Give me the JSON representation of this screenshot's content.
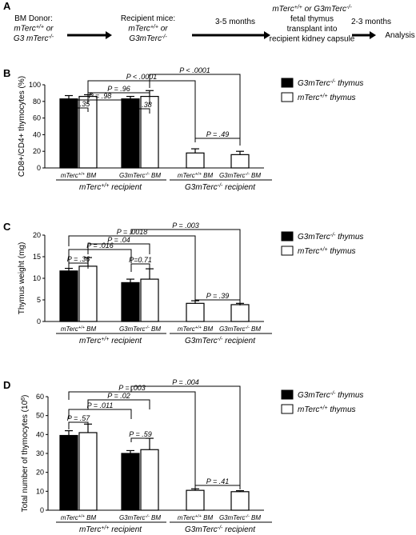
{
  "panel_a": {
    "letter": "A",
    "steps": [
      [
        "BM Donor:",
        "mTerc+/+ or",
        "G3 mTerc-/-"
      ],
      [
        "Recipient mice:",
        "mTerc+/+ or",
        "G3mTerc-/-"
      ],
      [
        "3-5 months"
      ],
      [
        "mTerc+/+ or G3mTerc-/-",
        "fetal thymus",
        "transplant into",
        "recipient kidney capsule"
      ],
      [
        "2-3 months"
      ],
      [
        "Analysis"
      ]
    ]
  },
  "legend": {
    "g3_label": "G3mTerc-/- thymus",
    "wt_label": "mTerc+/+ thymus",
    "g3_color": "#000000",
    "wt_color": "#ffffff"
  },
  "group_labels": {
    "wt_bm": "mTerc+/+ BM",
    "g3_bm": "G3mTerc-/- BM",
    "wt_recipient": "mTerc+/+ recipient",
    "g3_recipient": "G3mTerc-/- recipient"
  },
  "chart_data": [
    {
      "panel": "B",
      "type": "bar",
      "ylabel": "CD8+/CD4+ thymocytes (%)",
      "ylim": [
        0,
        100
      ],
      "yticks": [
        0,
        20,
        40,
        60,
        80,
        100
      ],
      "categories": [
        "mTerc+/+ BM",
        "G3mTerc-/- BM",
        "mTerc+/+ BM",
        "G3mTerc-/- BM"
      ],
      "recipients": [
        "mTerc+/+ recipient",
        "mTerc+/+ recipient",
        "G3mTerc-/- recipient",
        "G3mTerc-/- recipient"
      ],
      "series": [
        {
          "name": "G3mTerc-/- thymus",
          "values": [
            83,
            83,
            null,
            null
          ],
          "errors": [
            4,
            3,
            null,
            null
          ]
        },
        {
          "name": "mTerc+/+ thymus",
          "values": [
            86,
            86,
            18,
            16
          ],
          "errors": [
            2,
            7,
            5,
            4
          ]
        }
      ],
      "comparisons": [
        "P = .35",
        "P = .98",
        "P = .96",
        "P = .38",
        "P < .0001",
        "P < .0001",
        "P = .49"
      ]
    },
    {
      "panel": "C",
      "type": "bar",
      "ylabel": "Thymus weight (mg)",
      "ylim": [
        0,
        20
      ],
      "yticks": [
        0,
        5,
        10,
        15,
        20
      ],
      "categories": [
        "mTerc+/+ BM",
        "G3mTerc-/- BM",
        "mTerc+/+ BM",
        "G3mTerc-/- BM"
      ],
      "recipients": [
        "mTerc+/+ recipient",
        "mTerc+/+ recipient",
        "G3mTerc-/- recipient",
        "G3mTerc-/- recipient"
      ],
      "series": [
        {
          "name": "G3mTerc-/- thymus",
          "values": [
            11.7,
            9.0,
            null,
            null
          ],
          "errors": [
            0.6,
            0.8,
            null,
            null
          ]
        },
        {
          "name": "mTerc+/+ thymus",
          "values": [
            12.8,
            9.8,
            4.2,
            3.9
          ],
          "errors": [
            2.0,
            2.4,
            0.6,
            0.3
          ]
        }
      ],
      "comparisons": [
        "P = .36",
        "P = .016",
        "P=0.71",
        "P = .04",
        "P = .0018",
        "P = .003",
        "P = .39"
      ]
    },
    {
      "panel": "D",
      "type": "bar",
      "ylabel": "Total number of thymocytes (10^6)",
      "ylim": [
        0,
        60
      ],
      "yticks": [
        0,
        10,
        20,
        30,
        40,
        50,
        60
      ],
      "categories": [
        "mTerc+/+ BM",
        "G3mTerc-/- BM",
        "mTerc+/+ BM",
        "G3mTerc-/- BM"
      ],
      "recipients": [
        "mTerc+/+ recipient",
        "mTerc+/+ recipient",
        "G3mTerc-/- recipient",
        "G3mTerc-/- recipient"
      ],
      "series": [
        {
          "name": "G3mTerc-/- thymus",
          "values": [
            39.5,
            30,
            null,
            null
          ],
          "errors": [
            2.5,
            1.5,
            null,
            null
          ]
        },
        {
          "name": "mTerc+/+ thymus",
          "values": [
            41,
            32,
            10.5,
            9.8
          ],
          "errors": [
            4.5,
            6,
            0.8,
            0.5
          ]
        }
      ],
      "comparisons": [
        "P = .57",
        "P = .011",
        "P = .59",
        "P = .02",
        "P = .003",
        "P = .004",
        "P = .41"
      ]
    }
  ]
}
